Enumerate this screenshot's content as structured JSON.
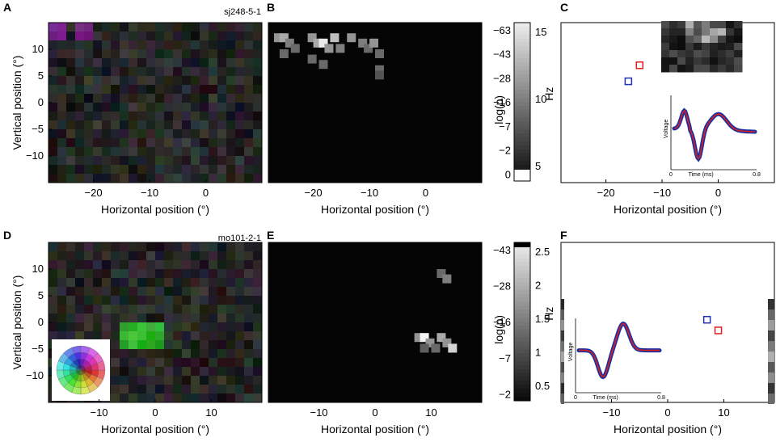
{
  "panels": [
    {
      "letter": "A",
      "tag": "sj248-5-1"
    },
    {
      "letter": "B"
    },
    {
      "letter": "C"
    },
    {
      "letter": "D",
      "tag": "mo101-2-1"
    },
    {
      "letter": "E"
    },
    {
      "letter": "F"
    }
  ],
  "axes": {
    "xlabel": "Horizontal position (°)",
    "ylabel": "Vertical position (°)"
  },
  "colorbars": {
    "top": {
      "left_label": "log(p)",
      "right_label": "Hz",
      "left_ticks": [
        "-63",
        "-43",
        "-28",
        "-16",
        "-7",
        "-2",
        "0"
      ],
      "right_ticks": [
        "15",
        "10",
        "5"
      ]
    },
    "bottom": {
      "left_label": "log(p)",
      "right_label": "Hz",
      "left_ticks": [
        "-43",
        "-28",
        "-16",
        "-7",
        "-2"
      ],
      "right_ticks": [
        "2.5",
        "2",
        "1.5",
        "1",
        "0.5"
      ]
    }
  },
  "waveform": {
    "ylabel": "Voltage",
    "xlabel": "Time (ms)",
    "xticks": [
      "0",
      "0.8"
    ]
  },
  "colors": {
    "red_marker": "#e02020",
    "blue_marker": "#2030b0",
    "trace_blue": "#1f2fa0",
    "trace_red": "#d42020"
  },
  "chart_data": [
    {
      "type": "heatmap",
      "id": "A",
      "title": "",
      "xlabel": "Horizontal position (°)",
      "ylabel": "Vertical position (°)",
      "xlim": [
        -28,
        10
      ],
      "ylim": [
        -15,
        15
      ],
      "xticks": [
        -20,
        -10,
        0
      ],
      "yticks": [
        10,
        5,
        0,
        -5,
        -10
      ]
    },
    {
      "type": "heatmap",
      "id": "B",
      "xlabel": "Horizontal position (°)",
      "xlim": [
        -28,
        10
      ],
      "ylim": [
        -15,
        15
      ],
      "xticks": [
        -20,
        -10,
        0
      ],
      "hot_cells": [
        [
          -27,
          13,
          0.5
        ],
        [
          -26,
          13,
          0.6
        ],
        [
          -25,
          12,
          0.4
        ],
        [
          -24,
          11,
          0.3
        ],
        [
          -21,
          13,
          0.5
        ],
        [
          -20,
          12,
          0.6
        ],
        [
          -19,
          12,
          0.9
        ],
        [
          -18,
          11,
          0.5
        ],
        [
          -17,
          13,
          0.7
        ],
        [
          -16,
          11,
          0.4
        ],
        [
          -14,
          13,
          0.5
        ],
        [
          -12,
          12,
          0.4
        ],
        [
          -11,
          11,
          0.3
        ],
        [
          -10,
          12,
          0.5
        ],
        [
          -9,
          10,
          0.3
        ],
        [
          -26,
          10,
          0.3
        ],
        [
          -21,
          9,
          0.3
        ],
        [
          -19,
          8,
          0.3
        ],
        [
          -9,
          7,
          0.3
        ],
        [
          -9,
          6,
          0.2
        ]
      ]
    },
    {
      "type": "scatter",
      "id": "C",
      "xlabel": "Horizontal position (°)",
      "xlim": [
        -28,
        10
      ],
      "ylim": [
        -15,
        15
      ],
      "xticks": [
        -20,
        -10,
        0
      ],
      "series": [
        {
          "color": "red",
          "points": [
            [
              -14,
              7
            ]
          ]
        },
        {
          "color": "blue",
          "points": [
            [
              -16,
              4
            ]
          ]
        }
      ]
    },
    {
      "type": "heatmap",
      "id": "D",
      "xlabel": "Horizontal position (°)",
      "ylabel": "Vertical position (°)",
      "xlim": [
        -19,
        19
      ],
      "ylim": [
        -15,
        15
      ],
      "xticks": [
        -10,
        0,
        10
      ],
      "yticks": [
        10,
        5,
        0,
        -5,
        -10
      ]
    },
    {
      "type": "heatmap",
      "id": "E",
      "xlabel": "Horizontal position (°)",
      "xlim": [
        -19,
        19
      ],
      "ylim": [
        -15,
        15
      ],
      "xticks": [
        -10,
        0,
        10
      ],
      "hot_cells": [
        [
          11,
          10,
          0.3
        ],
        [
          12,
          9,
          0.4
        ],
        [
          7,
          -2,
          0.5
        ],
        [
          8,
          -2,
          0.95
        ],
        [
          9,
          -3,
          0.5
        ],
        [
          11,
          -2,
          0.6
        ],
        [
          12,
          -3,
          0.5
        ],
        [
          13,
          -4,
          0.8
        ],
        [
          10,
          -4,
          0.3
        ],
        [
          8,
          -4,
          0.25
        ]
      ]
    },
    {
      "type": "scatter",
      "id": "F",
      "xlabel": "Horizontal position (°)",
      "xlim": [
        -19,
        19
      ],
      "ylim": [
        -15,
        15
      ],
      "xticks": [
        -10,
        0,
        10
      ],
      "series": [
        {
          "color": "red",
          "points": [
            [
              9,
              -1.5
            ]
          ]
        },
        {
          "color": "blue",
          "points": [
            [
              7,
              0.5
            ]
          ]
        }
      ]
    }
  ]
}
